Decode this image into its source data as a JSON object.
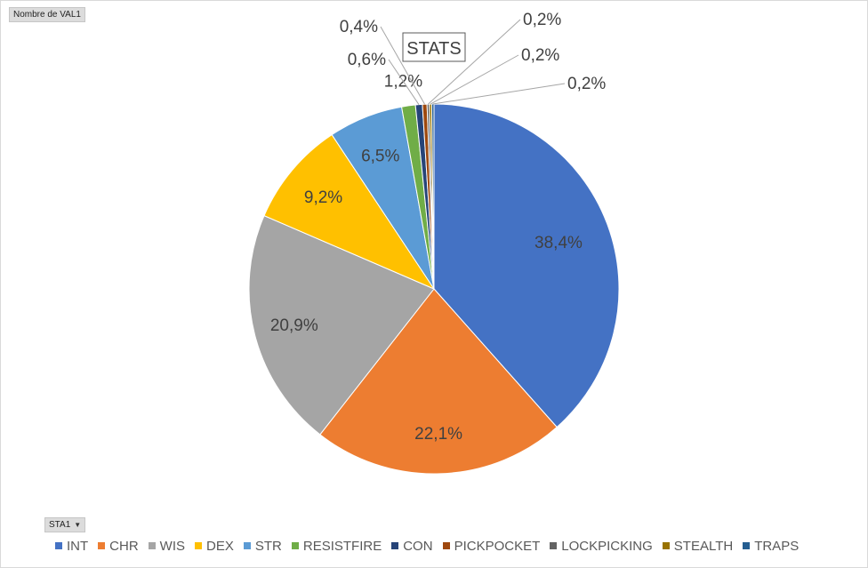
{
  "pivot": {
    "value_field": "Nombre de VAL1",
    "row_field": "STA1"
  },
  "chart_data": {
    "type": "pie",
    "title": "STATS",
    "legend_position": "bottom",
    "categories": [
      "INT",
      "CHR",
      "WIS",
      "DEX",
      "STR",
      "RESISTFIRE",
      "CON",
      "PICKPOCKET",
      "LOCKPICKING",
      "STEALTH",
      "TRAPS"
    ],
    "values": [
      38.4,
      22.1,
      20.9,
      9.2,
      6.5,
      1.2,
      0.6,
      0.4,
      0.2,
      0.2,
      0.2
    ],
    "labels": [
      "38,4%",
      "22,1%",
      "20,9%",
      "9,2%",
      "6,5%",
      "1,2%",
      "0,6%",
      "0,4%",
      "0,2%",
      "0,2%",
      "0,2%"
    ],
    "colors": [
      "#4472C4",
      "#ED7D31",
      "#A5A5A5",
      "#FFC000",
      "#5B9BD5",
      "#70AD47",
      "#264478",
      "#9E480E",
      "#636363",
      "#997300",
      "#255E91"
    ]
  }
}
